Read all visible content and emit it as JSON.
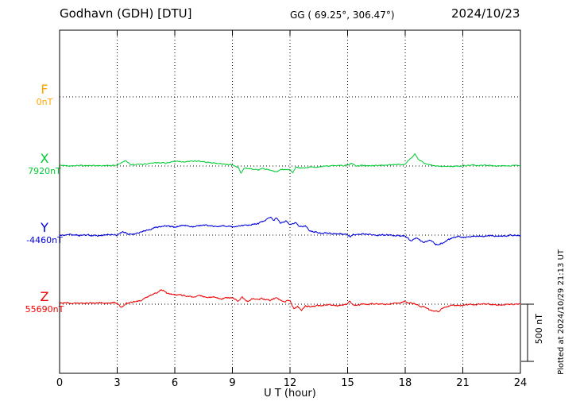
{
  "header": {
    "station_title": "Godhavn (GDH)  [DTU]",
    "coords": "GG ( 69.25°, 306.47°)",
    "date": "2024/10/23"
  },
  "axis": {
    "xlabel": "U T (hour)",
    "tick_labels": [
      "0",
      "3",
      "6",
      "9",
      "12",
      "15",
      "18",
      "21",
      "24"
    ]
  },
  "scale_bar": {
    "label": "500 nT"
  },
  "footer_note": "Plotted at 2024/10/29 21:13 UT",
  "channels": [
    {
      "letter": "F",
      "baseline_label": "0nT",
      "color": "#FFA500"
    },
    {
      "letter": "X",
      "baseline_label": "7920nT",
      "color": "#00CC33"
    },
    {
      "letter": "Y",
      "baseline_label": "-4460nT",
      "color": "#0000DD"
    },
    {
      "letter": "Z",
      "baseline_label": "55690nT",
      "color": "#EE0000"
    }
  ],
  "chart_data": {
    "type": "line",
    "title": "Godhavn (GDH) [DTU] magnetogram 2024/10/23",
    "xlabel": "U T (hour)",
    "x_range_hours": [
      0,
      24
    ],
    "x_ticks": [
      0,
      3,
      6,
      9,
      12,
      15,
      18,
      21,
      24
    ],
    "scale_bar_nT": 500,
    "grid": "dotted vertical at 3h intervals, dotted horizontal baselines per channel",
    "series": [
      {
        "name": "F",
        "baseline_value": "0nT",
        "color": "#FFA500",
        "plotted": false,
        "noise_nT": 0,
        "points_hour_nT": [
          [
            0,
            0
          ],
          [
            24,
            0
          ]
        ]
      },
      {
        "name": "X",
        "baseline_value": "7920nT",
        "color": "#00CC33",
        "plotted": true,
        "noise_nT": 4,
        "points_hour_nT": [
          [
            0,
            5
          ],
          [
            0.5,
            3
          ],
          [
            1,
            6
          ],
          [
            1.5,
            2
          ],
          [
            2,
            2
          ],
          [
            2.5,
            4
          ],
          [
            3,
            8
          ],
          [
            3.4,
            50
          ],
          [
            3.7,
            10
          ],
          [
            4,
            10
          ],
          [
            4.5,
            18
          ],
          [
            5,
            32
          ],
          [
            5.5,
            26
          ],
          [
            6,
            38
          ],
          [
            6.5,
            33
          ],
          [
            7,
            46
          ],
          [
            7.5,
            38
          ],
          [
            8,
            26
          ],
          [
            8.5,
            18
          ],
          [
            9,
            10
          ],
          [
            9.3,
            -10
          ],
          [
            9.45,
            -65
          ],
          [
            9.6,
            -18
          ],
          [
            10,
            -26
          ],
          [
            10.3,
            -40
          ],
          [
            10.6,
            -20
          ],
          [
            11,
            -40
          ],
          [
            11.3,
            -52
          ],
          [
            11.6,
            -26
          ],
          [
            12,
            -33
          ],
          [
            12.15,
            -60
          ],
          [
            12.3,
            -14
          ],
          [
            12.6,
            -20
          ],
          [
            13,
            -12
          ],
          [
            13.5,
            -6
          ],
          [
            14,
            0
          ],
          [
            14.5,
            3
          ],
          [
            15,
            8
          ],
          [
            15.2,
            24
          ],
          [
            15.4,
            4
          ],
          [
            16,
            2
          ],
          [
            16.5,
            4
          ],
          [
            17,
            8
          ],
          [
            17.5,
            10
          ],
          [
            18,
            18
          ],
          [
            18.3,
            68
          ],
          [
            18.5,
            100
          ],
          [
            18.7,
            60
          ],
          [
            19,
            22
          ],
          [
            19.3,
            6
          ],
          [
            19.6,
            0
          ],
          [
            20,
            -4
          ],
          [
            20.5,
            -2
          ],
          [
            21,
            0
          ],
          [
            21.5,
            4
          ],
          [
            22,
            6
          ],
          [
            22.5,
            3
          ],
          [
            23,
            2
          ],
          [
            23.5,
            4
          ],
          [
            24,
            6
          ]
        ]
      },
      {
        "name": "Y",
        "baseline_value": "-4460nT",
        "color": "#0000DD",
        "plotted": true,
        "noise_nT": 5,
        "points_hour_nT": [
          [
            0,
            0
          ],
          [
            0.5,
            3
          ],
          [
            1,
            -3
          ],
          [
            1.5,
            2
          ],
          [
            2,
            -2
          ],
          [
            2.5,
            3
          ],
          [
            3,
            1
          ],
          [
            3.3,
            26
          ],
          [
            3.6,
            8
          ],
          [
            4,
            14
          ],
          [
            4.5,
            40
          ],
          [
            5,
            68
          ],
          [
            5.5,
            82
          ],
          [
            6,
            70
          ],
          [
            6.5,
            83
          ],
          [
            7,
            76
          ],
          [
            7.5,
            88
          ],
          [
            8,
            76
          ],
          [
            8.5,
            83
          ],
          [
            9,
            70
          ],
          [
            9.5,
            83
          ],
          [
            10,
            90
          ],
          [
            10.5,
            110
          ],
          [
            10.8,
            138
          ],
          [
            11,
            165
          ],
          [
            11.15,
            122
          ],
          [
            11.3,
            150
          ],
          [
            11.5,
            110
          ],
          [
            11.8,
            124
          ],
          [
            12,
            96
          ],
          [
            12.3,
            110
          ],
          [
            12.5,
            68
          ],
          [
            12.8,
            82
          ],
          [
            13,
            42
          ],
          [
            13.5,
            20
          ],
          [
            14,
            14
          ],
          [
            14.5,
            13
          ],
          [
            15,
            2
          ],
          [
            15.15,
            -14
          ],
          [
            15.3,
            4
          ],
          [
            16,
            7
          ],
          [
            16.5,
            4
          ],
          [
            17,
            1
          ],
          [
            17.5,
            -3
          ],
          [
            18,
            -12
          ],
          [
            18.3,
            -54
          ],
          [
            18.6,
            -26
          ],
          [
            19,
            -68
          ],
          [
            19.3,
            -40
          ],
          [
            19.6,
            -82
          ],
          [
            20,
            -68
          ],
          [
            20.4,
            -28
          ],
          [
            20.8,
            -12
          ],
          [
            21,
            -20
          ],
          [
            21.5,
            -6
          ],
          [
            22,
            -13
          ],
          [
            22.5,
            -5
          ],
          [
            23,
            -8
          ],
          [
            23.5,
            -3
          ],
          [
            24,
            -2
          ]
        ]
      },
      {
        "name": "Z",
        "baseline_value": "55690nT",
        "color": "#EE0000",
        "plotted": true,
        "noise_nT": 5,
        "points_hour_nT": [
          [
            0,
            13
          ],
          [
            0.5,
            8
          ],
          [
            1,
            8
          ],
          [
            1.5,
            10
          ],
          [
            2,
            13
          ],
          [
            2.5,
            10
          ],
          [
            3,
            13
          ],
          [
            3.2,
            -32
          ],
          [
            3.5,
            13
          ],
          [
            4,
            20
          ],
          [
            4.5,
            55
          ],
          [
            5,
            95
          ],
          [
            5.3,
            124
          ],
          [
            5.6,
            98
          ],
          [
            6,
            84
          ],
          [
            6.5,
            76
          ],
          [
            7,
            56
          ],
          [
            7.3,
            82
          ],
          [
            7.6,
            56
          ],
          [
            8,
            62
          ],
          [
            8.5,
            48
          ],
          [
            9,
            55
          ],
          [
            9.3,
            26
          ],
          [
            9.5,
            62
          ],
          [
            9.8,
            20
          ],
          [
            10,
            42
          ],
          [
            10.5,
            48
          ],
          [
            11,
            34
          ],
          [
            11.3,
            55
          ],
          [
            11.6,
            27
          ],
          [
            12,
            34
          ],
          [
            12.2,
            -40
          ],
          [
            12.4,
            -20
          ],
          [
            12.6,
            -55
          ],
          [
            12.8,
            -13
          ],
          [
            13,
            -20
          ],
          [
            13.5,
            -13
          ],
          [
            14,
            -7
          ],
          [
            14.5,
            -13
          ],
          [
            15,
            2
          ],
          [
            15.1,
            27
          ],
          [
            15.3,
            -6
          ],
          [
            16,
            0
          ],
          [
            16.5,
            2
          ],
          [
            17,
            0
          ],
          [
            17.5,
            7
          ],
          [
            18,
            20
          ],
          [
            18.5,
            2
          ],
          [
            19,
            -27
          ],
          [
            19.3,
            -54
          ],
          [
            19.7,
            -62
          ],
          [
            20,
            -34
          ],
          [
            20.3,
            -13
          ],
          [
            21,
            -7
          ],
          [
            21.5,
            -2
          ],
          [
            22,
            0
          ],
          [
            22.5,
            -4
          ],
          [
            23,
            -7
          ],
          [
            23.5,
            -3
          ],
          [
            24,
            0
          ]
        ]
      }
    ]
  }
}
